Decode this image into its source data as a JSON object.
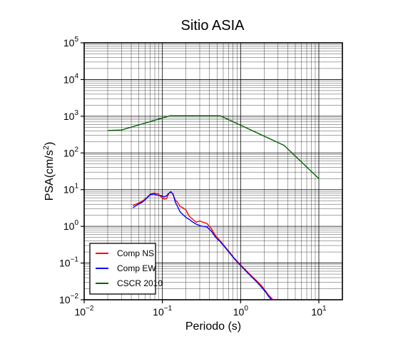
{
  "chart_data": {
    "type": "line",
    "title": "Sitio ASIA",
    "xlabel": "Periodo (s)",
    "ylabel_main": "PSA(cm/s",
    "ylabel_sup": "2",
    "ylabel_close": ")",
    "x_scale": "log",
    "y_scale": "log",
    "xlim": [
      0.01,
      20
    ],
    "ylim": [
      0.01,
      100000
    ],
    "grid": true,
    "legend_position": "bottom-left",
    "x_ticks": [
      {
        "value": 0.01,
        "base": "10",
        "exp": "−2"
      },
      {
        "value": 0.1,
        "base": "10",
        "exp": "−1"
      },
      {
        "value": 1,
        "base": "10",
        "exp": "0"
      },
      {
        "value": 10,
        "base": "10",
        "exp": "1"
      }
    ],
    "y_ticks": [
      {
        "value": 0.01,
        "base": "10",
        "exp": "−2"
      },
      {
        "value": 0.1,
        "base": "10",
        "exp": "−1"
      },
      {
        "value": 1,
        "base": "10",
        "exp": "0"
      },
      {
        "value": 10,
        "base": "10",
        "exp": "1"
      },
      {
        "value": 100,
        "base": "10",
        "exp": "2"
      },
      {
        "value": 1000,
        "base": "10",
        "exp": "3"
      },
      {
        "value": 10000,
        "base": "10",
        "exp": "4"
      },
      {
        "value": 100000,
        "base": "10",
        "exp": "5"
      }
    ],
    "series": [
      {
        "name": "Comp NS",
        "color": "#ff0000",
        "x": [
          0.042,
          0.047,
          0.055,
          0.063,
          0.07,
          0.078,
          0.087,
          0.096,
          0.105,
          0.113,
          0.12,
          0.128,
          0.137,
          0.146,
          0.155,
          0.168,
          0.183,
          0.2,
          0.22,
          0.245,
          0.27,
          0.3,
          0.33,
          0.37,
          0.42,
          0.48,
          0.55,
          0.63,
          0.72,
          0.82,
          0.93,
          1.05,
          1.2,
          1.4,
          1.6,
          1.85,
          2.1,
          2.3,
          2.6
        ],
        "y": [
          3.7,
          4.1,
          4.8,
          6.0,
          7.6,
          8.1,
          7.8,
          6.4,
          5.5,
          5.7,
          7.6,
          8.9,
          7.3,
          5.2,
          4.6,
          3.5,
          3.2,
          2.8,
          1.9,
          1.55,
          1.3,
          1.4,
          1.3,
          1.2,
          0.88,
          0.55,
          0.4,
          0.28,
          0.2,
          0.14,
          0.105,
          0.08,
          0.06,
          0.043,
          0.033,
          0.024,
          0.017,
          0.013,
          0.01
        ]
      },
      {
        "name": "Comp EW",
        "color": "#0000ff",
        "x": [
          0.042,
          0.047,
          0.055,
          0.063,
          0.07,
          0.078,
          0.087,
          0.096,
          0.105,
          0.113,
          0.12,
          0.128,
          0.137,
          0.146,
          0.155,
          0.168,
          0.183,
          0.2,
          0.22,
          0.245,
          0.27,
          0.3,
          0.33,
          0.37,
          0.42,
          0.48,
          0.55,
          0.63,
          0.72,
          0.82,
          0.93,
          1.05,
          1.2,
          1.4,
          1.6,
          1.85,
          2.1,
          2.3,
          2.6
        ],
        "y": [
          3.2,
          3.8,
          4.5,
          5.8,
          7.3,
          7.6,
          7.0,
          6.9,
          6.3,
          6.8,
          7.9,
          8.7,
          7.6,
          4.6,
          3.6,
          2.5,
          2.1,
          1.75,
          1.55,
          1.3,
          1.15,
          1.05,
          1.0,
          0.97,
          0.75,
          0.5,
          0.38,
          0.27,
          0.19,
          0.135,
          0.1,
          0.077,
          0.057,
          0.041,
          0.031,
          0.022,
          0.016,
          0.012,
          0.009
        ]
      },
      {
        "name": "CSCR 2010",
        "color": "#006400",
        "x": [
          0.02,
          0.03,
          0.125,
          0.55,
          3.6,
          10
        ],
        "y": [
          410,
          420,
          1030,
          1030,
          160,
          20
        ]
      }
    ]
  }
}
